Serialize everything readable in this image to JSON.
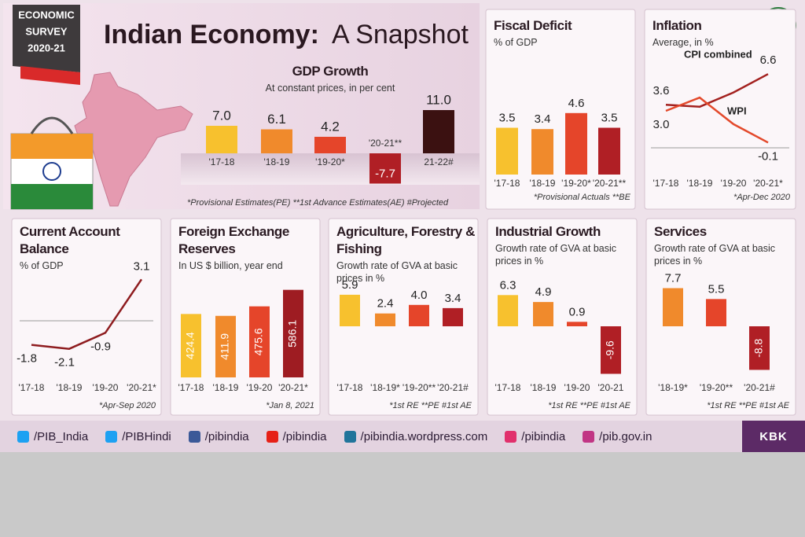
{
  "header": {
    "badge": [
      "ECONOMIC",
      "SURVEY",
      "2020-21"
    ],
    "title_bold": "Indian Economy:",
    "title_rest": "A Snapshot",
    "logo": "pib"
  },
  "chart_data": [
    {
      "type": "bar",
      "title": "GDP Growth",
      "subtitle": "At constant prices, in per cent",
      "categories": [
        "'17-18",
        "'18-19",
        "'19-20*",
        "'20-21**",
        "21-22#"
      ],
      "values": [
        7.0,
        6.1,
        4.2,
        -7.7,
        11.0
      ],
      "value_labels": [
        "7.0",
        "6.1",
        "4.2",
        "-7.7",
        "11.0"
      ],
      "colors": [
        "#f7c12e",
        "#f08a2c",
        "#e5452a",
        "#b01f25",
        "#3b1111"
      ],
      "note": "*Provisional Estimates(PE) **1st Advance Estimates(AE) #Projected"
    },
    {
      "type": "bar",
      "title": "Fiscal Deficit",
      "subtitle": "% of GDP",
      "categories": [
        "'17-18",
        "'18-19",
        "'19-20*",
        "'20-21**"
      ],
      "values": [
        3.5,
        3.4,
        4.6,
        3.5
      ],
      "colors": [
        "#f7c12e",
        "#f08a2c",
        "#e5452a",
        "#b01f25"
      ],
      "note": "*Provisional Actuals **BE"
    },
    {
      "type": "line",
      "title": "Inflation",
      "subtitle": "Average, in %",
      "categories": [
        "'17-18",
        "'18-19",
        "'19-20",
        "'20-21*"
      ],
      "series": [
        {
          "name": "CPI combined",
          "color": "#a3211f",
          "values": [
            3.6,
            3.4,
            4.8,
            6.6
          ],
          "value_labels": [
            "3.6",
            null,
            null,
            "6.6"
          ]
        },
        {
          "name": "WPI",
          "color": "#e3492b",
          "values": [
            3.0,
            4.3,
            1.7,
            -0.1
          ],
          "value_labels": [
            "3.0",
            null,
            null,
            "-0.1"
          ]
        }
      ],
      "note": "*Apr-Dec 2020"
    },
    {
      "type": "line",
      "title": "Current Account Balance",
      "subtitle": "% of GDP",
      "categories": [
        "'17-18",
        "'18-19",
        "'19-20",
        "'20-21*"
      ],
      "series": [
        {
          "color": "#8e1c1f",
          "values": [
            -1.8,
            -2.1,
            -0.9,
            3.1
          ]
        }
      ],
      "note": "*Apr-Sep 2020"
    },
    {
      "type": "bar",
      "title": "Foreign Exchange Reserves",
      "subtitle": "In US $ billion, year end",
      "categories": [
        "'17-18",
        "'18-19",
        "'19-20",
        "'20-21*"
      ],
      "values": [
        424.4,
        411.9,
        475.6,
        586.1
      ],
      "colors": [
        "#f7c12e",
        "#f08a2c",
        "#e5452a",
        "#9e1c22"
      ],
      "note": "*Jan 8, 2021"
    },
    {
      "type": "bar",
      "title": "Agriculture, Forestry & Fishing",
      "subtitle": "Growth rate of GVA at basic prices in %",
      "categories": [
        "'17-18",
        "'18-19*",
        "'19-20**",
        "'20-21#"
      ],
      "values": [
        5.9,
        2.4,
        4.0,
        3.4
      ],
      "value_labels": [
        "5.9",
        "2.4",
        "4.0",
        "3.4"
      ],
      "colors": [
        "#f7c12e",
        "#f08a2c",
        "#e5452a",
        "#b01f25"
      ],
      "note": "*1st RE **PE #1st AE"
    },
    {
      "type": "bar",
      "title": "Industrial Growth",
      "subtitle": "Growth rate of GVA at basic prices in %",
      "categories": [
        "'17-18",
        "'18-19",
        "'19-20",
        "'20-21"
      ],
      "values": [
        6.3,
        4.9,
        0.9,
        -9.6
      ],
      "colors": [
        "#f7c12e",
        "#f08a2c",
        "#e5452a",
        "#b01f25"
      ],
      "note": "*1st RE **PE #1st AE"
    },
    {
      "type": "bar",
      "title": "Services",
      "subtitle": "Growth rate of GVA at basic prices in %",
      "categories": [
        "'18-19*",
        "'19-20**",
        "'20-21#"
      ],
      "values": [
        7.7,
        5.5,
        -8.8
      ],
      "colors": [
        "#f08a2c",
        "#e5452a",
        "#b01f25"
      ],
      "note": "*1st RE **PE #1st AE"
    }
  ],
  "footer": {
    "links": [
      "/PIB_India",
      "/PIBHindi",
      "/pibindia",
      "/pibindia",
      "/pibindia.wordpress.com",
      "/pibindia",
      "/pib.gov.in"
    ],
    "credit": "KBK"
  }
}
